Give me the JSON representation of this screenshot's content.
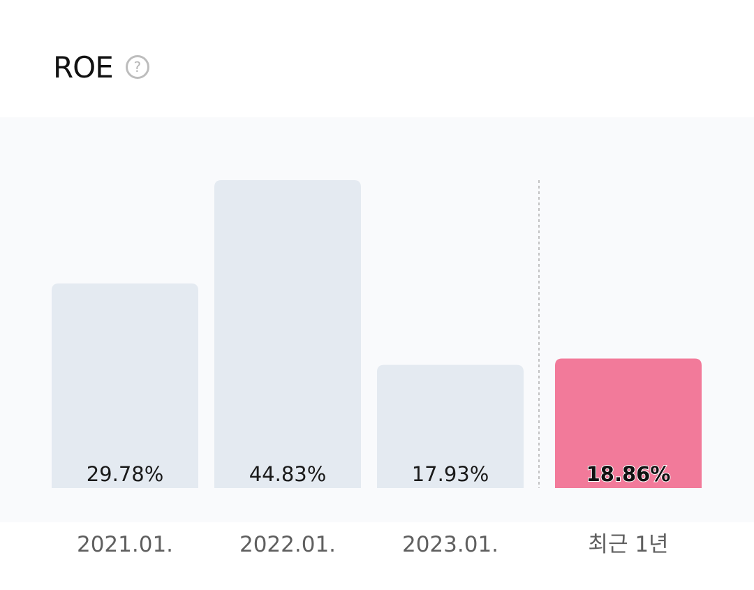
{
  "header": {
    "title": "ROE",
    "help_icon": "question-circle-icon"
  },
  "colors": {
    "bar_default": "#e4eaf1",
    "bar_highlight": "#f27a9a",
    "plot_background": "#f9fafc",
    "divider": "#b0b0b0"
  },
  "chart_data": {
    "type": "bar",
    "title": "ROE",
    "categories": [
      "2021.01.",
      "2022.01.",
      "2023.01.",
      "최근 1년"
    ],
    "values": [
      29.78,
      44.83,
      17.93,
      18.86
    ],
    "value_labels": [
      "29.78%",
      "44.83%",
      "17.93%",
      "18.86%"
    ],
    "highlight_index": 3,
    "divider_before_index": 3,
    "xlabel": "",
    "ylabel": "",
    "ylim": [
      0,
      44.83
    ],
    "grid": false
  }
}
